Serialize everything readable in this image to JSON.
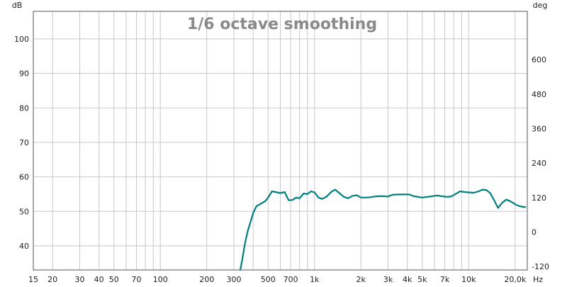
{
  "chart_data": {
    "type": "line",
    "title": "1/6 octave smoothing",
    "ylabel": "dB",
    "y2label": "deg",
    "xlabel": "Hz",
    "x_scale": "log",
    "xlim": [
      15,
      24000
    ],
    "ylim": [
      33,
      108
    ],
    "y2lim": [
      -132,
      768
    ],
    "grid": true,
    "x_ticks": [
      {
        "value": 15,
        "label": "15"
      },
      {
        "value": 20,
        "label": "20"
      },
      {
        "value": 30,
        "label": "30"
      },
      {
        "value": 40,
        "label": "40"
      },
      {
        "value": 50,
        "label": "50"
      },
      {
        "value": 70,
        "label": "70"
      },
      {
        "value": 100,
        "label": "100"
      },
      {
        "value": 200,
        "label": "200"
      },
      {
        "value": 300,
        "label": "300"
      },
      {
        "value": 500,
        "label": "500"
      },
      {
        "value": 700,
        "label": "700"
      },
      {
        "value": 1000,
        "label": "1k"
      },
      {
        "value": 2000,
        "label": "2k"
      },
      {
        "value": 3000,
        "label": "3k"
      },
      {
        "value": 4000,
        "label": "4k"
      },
      {
        "value": 5000,
        "label": "5k"
      },
      {
        "value": 7000,
        "label": "7k"
      },
      {
        "value": 10000,
        "label": "10k"
      },
      {
        "value": 20000,
        "label": "20,0k"
      }
    ],
    "x_minor_grid": [
      60,
      80,
      90,
      400,
      600,
      800,
      900,
      6000,
      8000,
      9000
    ],
    "y_ticks": [
      40,
      50,
      60,
      70,
      80,
      90,
      100
    ],
    "y2_ticks": [
      -120,
      0,
      120,
      240,
      360,
      480,
      600
    ],
    "series": [
      {
        "color": "#007f7f",
        "x": [
          330,
          340,
          355,
          370,
          385,
          400,
          420,
          440,
          460,
          480,
          500,
          530,
          560,
          600,
          640,
          680,
          720,
          760,
          800,
          850,
          900,
          950,
          1000,
          1060,
          1120,
          1200,
          1280,
          1360,
          1450,
          1550,
          1650,
          1760,
          1880,
          2000,
          2150,
          2300,
          2450,
          2600,
          2800,
          3000,
          3200,
          3500,
          3800,
          4100,
          4400,
          4700,
          5000,
          5400,
          5800,
          6200,
          6700,
          7200,
          7700,
          8200,
          8800,
          9400,
          10000,
          10800,
          11600,
          12300,
          13000,
          13800,
          14600,
          15500,
          16500,
          17500,
          18500,
          19500,
          20500,
          21500,
          22500,
          23500
        ],
        "values": [
          33,
          36,
          41,
          44.5,
          47,
          49.5,
          51.5,
          52,
          52.5,
          53,
          54,
          55.8,
          55.6,
          55.3,
          55.6,
          53.2,
          53.3,
          54,
          53.8,
          55.2,
          55,
          55.8,
          55.5,
          54,
          53.6,
          54.3,
          55.6,
          56.3,
          55.3,
          54.2,
          53.8,
          54.5,
          54.7,
          54,
          54,
          54.1,
          54.3,
          54.4,
          54.4,
          54.3,
          54.8,
          54.9,
          54.9,
          54.9,
          54.4,
          54.2,
          54,
          54.2,
          54.4,
          54.6,
          54.4,
          54.2,
          54.3,
          55,
          55.8,
          55.6,
          55.5,
          55.4,
          55.8,
          56.3,
          56.2,
          55.3,
          53.3,
          51,
          52.5,
          53.4,
          53,
          52.4,
          51.8,
          51.5,
          51.3,
          51.2
        ]
      }
    ]
  }
}
